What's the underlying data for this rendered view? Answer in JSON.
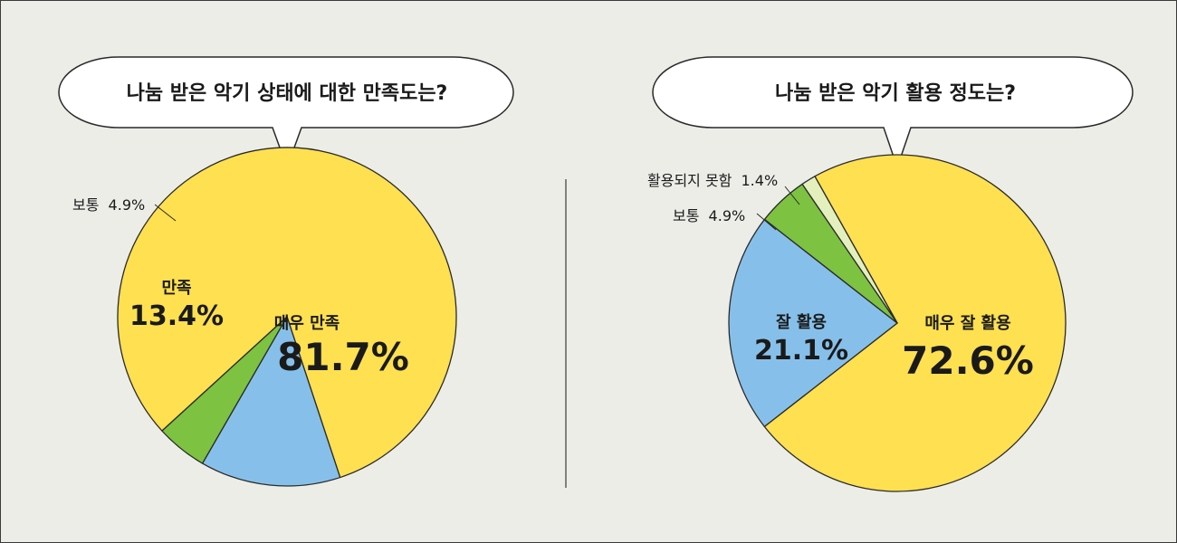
{
  "chart_data": [
    {
      "type": "pie",
      "title": "나눔 받은 악기 상태에 대한 만족도는?",
      "slices": [
        {
          "label": "매우 만족",
          "value": 81.7,
          "display": "81.7%",
          "color": "#FEE050"
        },
        {
          "label": "만족",
          "value": 13.4,
          "display": "13.4%",
          "color": "#86C0EA"
        },
        {
          "label": "보통",
          "value": 4.9,
          "display": "4.9%",
          "color": "#7DC241"
        }
      ]
    },
    {
      "type": "pie",
      "title": "나눔 받은 악기 활용 정도는?",
      "slices": [
        {
          "label": "매우 잘 활용",
          "value": 72.6,
          "display": "72.6%",
          "color": "#FEE050"
        },
        {
          "label": "잘 활용",
          "value": 21.1,
          "display": "21.1%",
          "color": "#86C0EA"
        },
        {
          "label": "보통",
          "value": 4.9,
          "display": "4.9%",
          "color": "#7DC241"
        },
        {
          "label": "활용되지 못함",
          "value": 1.4,
          "display": "1.4%",
          "color": "#E4EFBE"
        }
      ]
    }
  ]
}
